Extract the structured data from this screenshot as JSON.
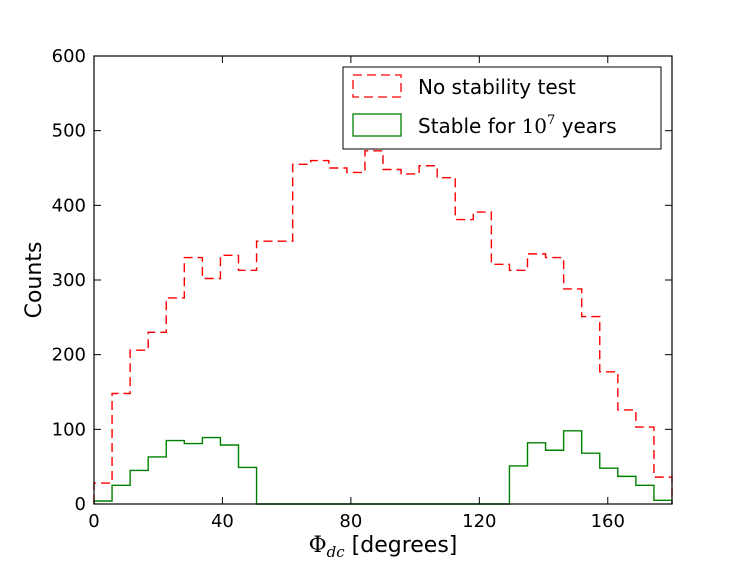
{
  "chart_data": {
    "type": "histogram",
    "xlabel_symbol": "Φ",
    "xlabel_subscript": "dc",
    "xlabel_suffix": " [degrees]",
    "ylabel": "Counts",
    "xlim": [
      0,
      180
    ],
    "ylim": [
      0,
      600
    ],
    "xticks": [
      0,
      40,
      80,
      120,
      160
    ],
    "yticks": [
      0,
      100,
      200,
      300,
      400,
      500,
      600
    ],
    "bin_width": 5.625,
    "bin_start": 0,
    "series": [
      {
        "name": "No stability test",
        "style": "dashed",
        "color": "#ff0000",
        "values": [
          28,
          148,
          206,
          230,
          276,
          330,
          302,
          333,
          313,
          352,
          352,
          455,
          460,
          450,
          444,
          473,
          448,
          442,
          453,
          437,
          381,
          391,
          321,
          313,
          335,
          330,
          288,
          251,
          177,
          126,
          103,
          36
        ]
      },
      {
        "name": "Stable for",
        "name_math_base": "10",
        "name_math_exp": "7",
        "name_suffix": " years",
        "style": "solid",
        "color": "#008000",
        "values": [
          4,
          25,
          45,
          63,
          85,
          81,
          89,
          79,
          49,
          0,
          0,
          0,
          0,
          0,
          0,
          0,
          0,
          0,
          0,
          0,
          0,
          0,
          0,
          51,
          82,
          72,
          98,
          68,
          48,
          37,
          25,
          5
        ]
      }
    ],
    "legend_position": "top-right"
  }
}
